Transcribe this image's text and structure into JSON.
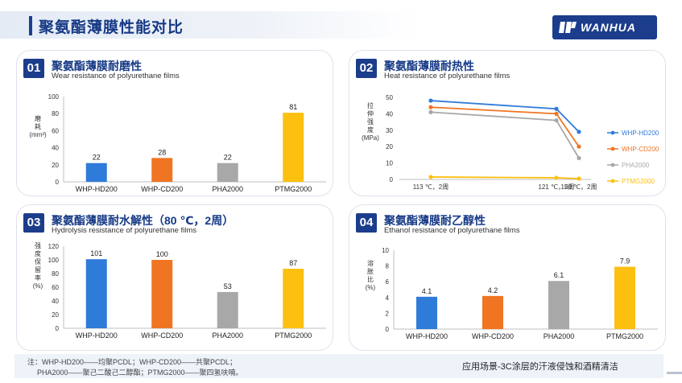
{
  "page": {
    "title": "聚氨酯薄膜性能对比"
  },
  "logo": {
    "text": "WANHUA"
  },
  "colors": {
    "blue": "#2f7bd9",
    "orange": "#f07522",
    "gray": "#a8a8a8",
    "yellow": "#fdc010",
    "navy": "#1b3d8c"
  },
  "panels": [
    {
      "number": "01",
      "title": "聚氨酯薄膜耐磨性",
      "subtitle": "Wear resistance of polyurethane films",
      "ylabel": [
        "磨",
        "耗",
        "(mm³)"
      ]
    },
    {
      "number": "02",
      "title": "聚氨酯薄膜耐热性",
      "subtitle": "Heat resistance of polyurethane films",
      "ylabel": [
        "拉",
        "伸",
        "强",
        "度",
        "(MPa)"
      ]
    },
    {
      "number": "03",
      "title": "聚氨酯薄膜耐水解性（80 ℃，2周）",
      "subtitle": "Hydrolysis resistance of polyurethane films",
      "ylabel": [
        "强",
        "度",
        "保",
        "留",
        "率",
        "(%)"
      ]
    },
    {
      "number": "04",
      "title": "聚氨酯薄膜耐乙醇性",
      "subtitle": "Ethanol resistance of polyurethane films",
      "ylabel": [
        "溶",
        "胀",
        "比",
        "(%)"
      ]
    }
  ],
  "chart_data": [
    {
      "type": "bar",
      "categories": [
        "WHP-HD200",
        "WHP-CD200",
        "PHA2000",
        "PTMG2000"
      ],
      "values": [
        22,
        28,
        22,
        81
      ],
      "title": "聚氨酯薄膜耐磨性",
      "ylabel": "磨耗(mm³)",
      "ylim": [
        0,
        100
      ],
      "yticks": [
        0,
        20,
        40,
        60,
        80,
        100
      ],
      "colors": [
        "#2f7bd9",
        "#f07522",
        "#a8a8a8",
        "#fdc010"
      ]
    },
    {
      "type": "line",
      "x": [
        "113 ℃，2周",
        "121 ℃，2周",
        "150 ℃，2周"
      ],
      "series": [
        {
          "name": "WHP-HD200",
          "values": [
            48,
            43,
            29
          ],
          "color": "#2f7bd9"
        },
        {
          "name": "WHP-CD200",
          "values": [
            44,
            40,
            20
          ],
          "color": "#f07522"
        },
        {
          "name": "PHA2000",
          "values": [
            41,
            36,
            13
          ],
          "color": "#a8a8a8"
        },
        {
          "name": "PTMG2000",
          "values": [
            1.5,
            1,
            0.5
          ],
          "color": "#fdc010"
        }
      ],
      "title": "聚氨酯薄膜耐热性",
      "ylabel": "拉伸强度(MPa)",
      "ylim": [
        0,
        50
      ],
      "yticks": [
        0,
        10,
        20,
        30,
        40,
        50
      ],
      "legend": "right"
    },
    {
      "type": "bar",
      "categories": [
        "WHP-HD200",
        "WHP-CD200",
        "PHA2000",
        "PTMG2000"
      ],
      "values": [
        101,
        100,
        53,
        87
      ],
      "title": "聚氨酯薄膜耐水解性（80 ℃，2周）",
      "ylabel": "强度保留率(%)",
      "ylim": [
        0,
        120
      ],
      "yticks": [
        0,
        20,
        40,
        60,
        80,
        100,
        120
      ],
      "colors": [
        "#2f7bd9",
        "#f07522",
        "#a8a8a8",
        "#fdc010"
      ]
    },
    {
      "type": "bar",
      "categories": [
        "WHP-HD200",
        "WHP-CD200",
        "PHA2000",
        "PTMG2000"
      ],
      "values": [
        4.1,
        4.2,
        6.1,
        7.9
      ],
      "title": "聚氨酯薄膜耐乙醇性",
      "ylabel": "溶胀比(%)",
      "ylim": [
        0,
        10
      ],
      "yticks": [
        0,
        2,
        4,
        6,
        8,
        10
      ],
      "colors": [
        "#2f7bd9",
        "#f07522",
        "#a8a8a8",
        "#fdc010"
      ]
    }
  ],
  "footer": {
    "note_line1": "注：WHP-HD200——均聚PCDL；WHP-CD200——共聚PCDL；",
    "note_line2": "PHA2000——聚己二酸己二醇酯；PTMG2000——聚四氢呋喃。",
    "scenario": "应用场景-3C涂层的汗液侵蚀和酒精清洁"
  }
}
